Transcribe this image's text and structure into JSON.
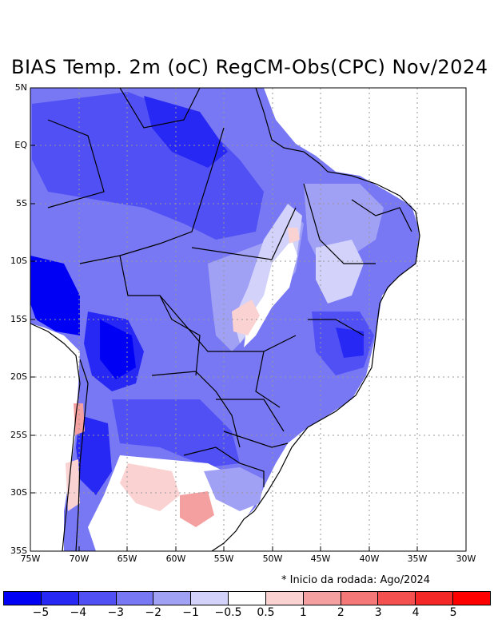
{
  "title": "BIAS Temp. 2m (oC) RegCM-Obs(CPC) Nov/2024",
  "note": "* Inicio da rodada: Ago/2024",
  "lat_labels": [
    "5N",
    "EQ",
    "5S",
    "10S",
    "15S",
    "20S",
    "25S",
    "30S",
    "35S"
  ],
  "lon_labels": [
    "75W",
    "70W",
    "65W",
    "60W",
    "55W",
    "50W",
    "45W",
    "40W",
    "35W",
    "30W"
  ],
  "colorbar": {
    "colors": [
      "#0000f5",
      "#2828f5",
      "#5050f5",
      "#7878f5",
      "#a0a0f5",
      "#d2d2fa",
      "#ffffff",
      "#fad2d2",
      "#f5a0a0",
      "#f57878",
      "#f55050",
      "#f52828",
      "#ff0000"
    ],
    "labels": [
      "−5",
      "−4",
      "−3",
      "−2",
      "−1",
      "−0.5",
      "0.5",
      "1",
      "2",
      "3",
      "4",
      "5"
    ]
  }
}
